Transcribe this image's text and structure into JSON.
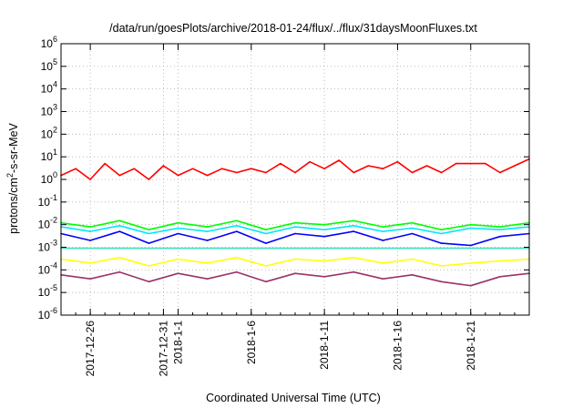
{
  "chart_data": {
    "type": "line",
    "title": "/data/run/goesPlots/archive/2018-01-24/flux/../flux/31daysMoonFluxes.txt",
    "xlabel": "Coordinated Universal Time (UTC)",
    "ylabel": {
      "pre": "protons/cm",
      "sup": "2",
      "post": "-s-sr-MeV"
    },
    "xlim": [
      "2017-12-24",
      "2018-01-25"
    ],
    "ylim": [
      1e-06,
      1000000.0
    ],
    "y_scale": "log",
    "grid": true,
    "x_ticks": [
      {
        "date": "2017-12-26",
        "label": "2017-12-26"
      },
      {
        "date": "2017-12-31",
        "label": "2017-12-31"
      },
      {
        "date": "2018-01-01",
        "label": "2018-1-1"
      },
      {
        "date": "2018-01-06",
        "label": "2018-1-6"
      },
      {
        "date": "2018-01-11",
        "label": "2018-1-11"
      },
      {
        "date": "2018-01-16",
        "label": "2018-1-16"
      },
      {
        "date": "2018-01-21",
        "label": "2018-1-21"
      }
    ],
    "y_ticks": [
      {
        "exp": "-6"
      },
      {
        "exp": "-5"
      },
      {
        "exp": "-4"
      },
      {
        "exp": "-3"
      },
      {
        "exp": "-2"
      },
      {
        "exp": "-1"
      },
      {
        "exp": "0"
      },
      {
        "exp": "1"
      },
      {
        "exp": "2"
      },
      {
        "exp": "3"
      },
      {
        "exp": "4"
      },
      {
        "exp": "5"
      },
      {
        "exp": "6"
      }
    ],
    "y_tick_base": "10",
    "series": [
      {
        "color": "#ff0000",
        "x": [
          "2017-12-24",
          "2017-12-25",
          "2017-12-26",
          "2017-12-27",
          "2017-12-28",
          "2017-12-29",
          "2017-12-30",
          "2017-12-31",
          "2018-01-01",
          "2018-01-02",
          "2018-01-03",
          "2018-01-04",
          "2018-01-05",
          "2018-01-06",
          "2018-01-07",
          "2018-01-08",
          "2018-01-09",
          "2018-01-10",
          "2018-01-11",
          "2018-01-12",
          "2018-01-13",
          "2018-01-14",
          "2018-01-15",
          "2018-01-16",
          "2018-01-17",
          "2018-01-18",
          "2018-01-19",
          "2018-01-20",
          "2018-01-21",
          "2018-01-22",
          "2018-01-23",
          "2018-01-24",
          "2018-01-25"
        ],
        "values": [
          1.5,
          3,
          1,
          5,
          1.5,
          3,
          1,
          4,
          1.5,
          3,
          1.5,
          3,
          2,
          3,
          2,
          5,
          2,
          6,
          3,
          7,
          2,
          4,
          3,
          6,
          2,
          4,
          2,
          5,
          5,
          5,
          2,
          4,
          8
        ]
      },
      {
        "color": "#00ff00",
        "x": [
          "2017-12-24",
          "2017-12-26",
          "2017-12-28",
          "2017-12-30",
          "2018-01-01",
          "2018-01-03",
          "2018-01-05",
          "2018-01-07",
          "2018-01-09",
          "2018-01-11",
          "2018-01-13",
          "2018-01-15",
          "2018-01-17",
          "2018-01-19",
          "2018-01-21",
          "2018-01-23",
          "2018-01-25"
        ],
        "values": [
          0.012,
          0.008,
          0.015,
          0.006,
          0.012,
          0.008,
          0.015,
          0.006,
          0.012,
          0.01,
          0.015,
          0.008,
          0.012,
          0.006,
          0.01,
          0.008,
          0.012
        ]
      },
      {
        "color": "#00e5ff",
        "x": [
          "2017-12-24",
          "2017-12-26",
          "2017-12-28",
          "2017-12-30",
          "2018-01-01",
          "2018-01-03",
          "2018-01-05",
          "2018-01-07",
          "2018-01-09",
          "2018-01-11",
          "2018-01-13",
          "2018-01-15",
          "2018-01-17",
          "2018-01-19",
          "2018-01-21",
          "2018-01-23",
          "2018-01-25"
        ],
        "values": [
          0.008,
          0.005,
          0.009,
          0.004,
          0.007,
          0.005,
          0.009,
          0.004,
          0.008,
          0.006,
          0.009,
          0.005,
          0.007,
          0.004,
          0.007,
          0.006,
          0.008
        ]
      },
      {
        "color": "#0000ff",
        "x": [
          "2017-12-24",
          "2017-12-26",
          "2017-12-28",
          "2017-12-30",
          "2018-01-01",
          "2018-01-03",
          "2018-01-05",
          "2018-01-07",
          "2018-01-09",
          "2018-01-11",
          "2018-01-13",
          "2018-01-15",
          "2018-01-17",
          "2018-01-19",
          "2018-01-21",
          "2018-01-23",
          "2018-01-25"
        ],
        "values": [
          0.004,
          0.002,
          0.005,
          0.0015,
          0.004,
          0.002,
          0.005,
          0.0015,
          0.004,
          0.003,
          0.005,
          0.002,
          0.004,
          0.0015,
          0.0012,
          0.003,
          0.004
        ]
      },
      {
        "color": "#40e0c0",
        "x": [
          "2017-12-24",
          "2017-12-28",
          "2018-01-01",
          "2018-01-05",
          "2018-01-09",
          "2018-01-13",
          "2018-01-17",
          "2018-01-21",
          "2018-01-25"
        ],
        "values": [
          0.0009,
          0.0009,
          0.0009,
          0.0009,
          0.0009,
          0.0009,
          0.0009,
          0.0009,
          0.0009
        ]
      },
      {
        "color": "#ffff00",
        "x": [
          "2017-12-24",
          "2017-12-26",
          "2017-12-28",
          "2017-12-30",
          "2018-01-01",
          "2018-01-03",
          "2018-01-05",
          "2018-01-07",
          "2018-01-09",
          "2018-01-11",
          "2018-01-13",
          "2018-01-15",
          "2018-01-17",
          "2018-01-19",
          "2018-01-21",
          "2018-01-23",
          "2018-01-25"
        ],
        "values": [
          0.0003,
          0.0002,
          0.00035,
          0.00015,
          0.0003,
          0.0002,
          0.00035,
          0.00015,
          0.0003,
          0.00025,
          0.00035,
          0.0002,
          0.0003,
          0.00015,
          0.0002,
          0.00025,
          0.0003
        ]
      },
      {
        "color": "#993366",
        "x": [
          "2017-12-24",
          "2017-12-26",
          "2017-12-28",
          "2017-12-30",
          "2018-01-01",
          "2018-01-03",
          "2018-01-05",
          "2018-01-07",
          "2018-01-09",
          "2018-01-11",
          "2018-01-13",
          "2018-01-15",
          "2018-01-17",
          "2018-01-19",
          "2018-01-21",
          "2018-01-23",
          "2018-01-25"
        ],
        "values": [
          6e-05,
          4e-05,
          8e-05,
          3e-05,
          7e-05,
          4e-05,
          8e-05,
          3e-05,
          7e-05,
          5e-05,
          8e-05,
          4e-05,
          6e-05,
          3e-05,
          2e-05,
          5e-05,
          7e-05
        ]
      }
    ]
  }
}
